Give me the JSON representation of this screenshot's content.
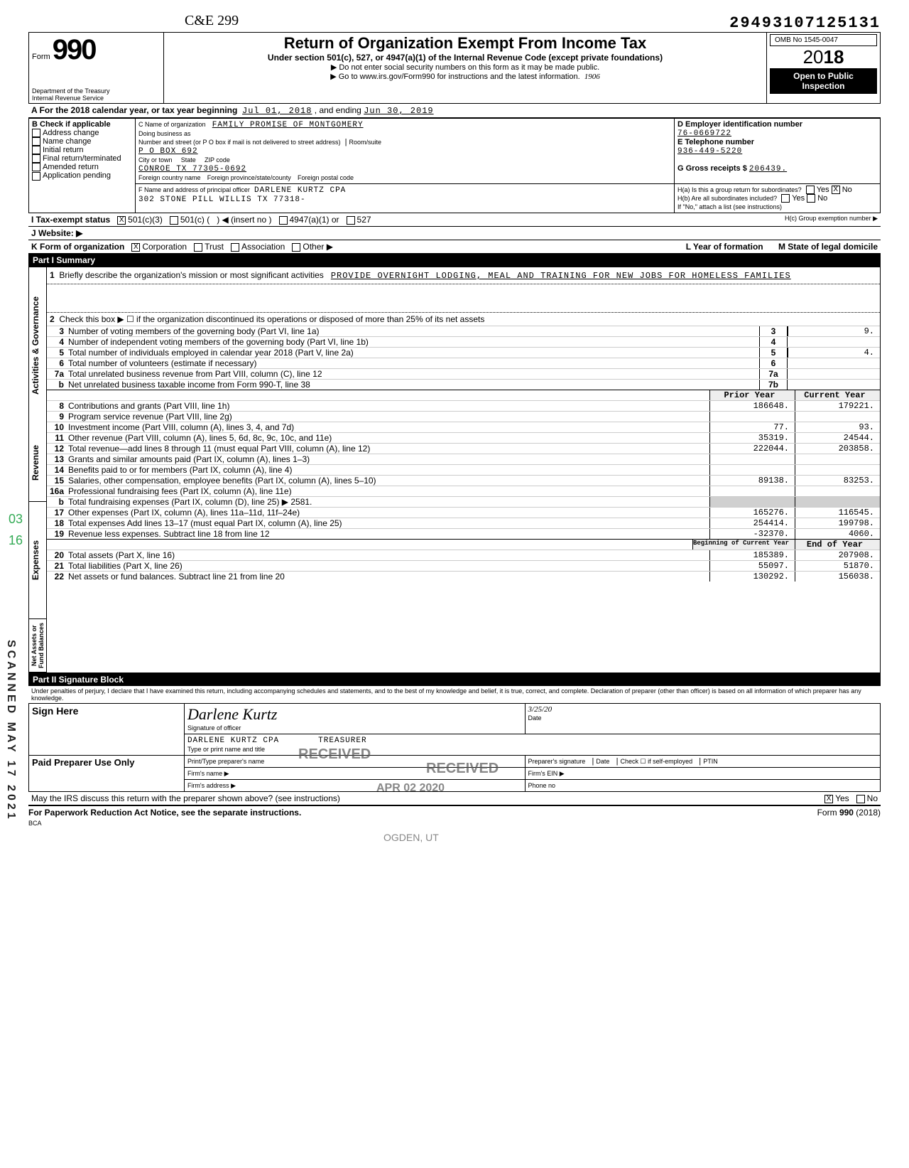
{
  "header": {
    "topright_number": "29493107125131",
    "cursive_top": "C&E 299",
    "form_number": "990",
    "form_prefix": "Form",
    "title": "Return of Organization Exempt From Income Tax",
    "subtitle1": "Under section 501(c), 527, or 4947(a)(1) of the Internal Revenue Code (except private foundations)",
    "subtitle2": "▶ Do not enter social security numbers on this form as it may be made public.",
    "subtitle3": "▶ Go to www.irs.gov/Form990 for instructions and the latest information.",
    "dept": "Department of the Treasury\nInternal Revenue Service",
    "omb": "OMB No 1545-0047",
    "year": "2018",
    "year_large_prefix": "20",
    "year_large_suffix": "18",
    "open": "Open to Public Inspection",
    "handwritten_1906": "1906"
  },
  "lineA": {
    "label": "A  For the 2018 calendar year, or tax year beginning",
    "begin": "Jul 01, 2018",
    "mid": ", and ending",
    "end": "Jun 30, 2019"
  },
  "blockB": {
    "label": "B  Check if applicable",
    "items": [
      "Address change",
      "Name change",
      "Initial return",
      "Final return/terminated",
      "Amended return",
      "Application pending"
    ]
  },
  "blockC": {
    "label": "C Name of organization",
    "org": "FAMILY PROMISE OF MONTGOMERY",
    "dba_label": "Doing business as",
    "addr_label": "Number and street (or P O box if mail is not delivered to street address)",
    "room_label": "Room/suite",
    "addr": "P O BOX 692",
    "city_label": "City or town",
    "state_label": "State",
    "zip_label": "ZIP code",
    "city": "CONROE TX 77305-0692",
    "foreign_country": "Foreign country name",
    "foreign_prov": "Foreign province/state/county",
    "foreign_postal": "Foreign postal code"
  },
  "blockD": {
    "label": "D  Employer identification number",
    "value": "76-0669722"
  },
  "blockE": {
    "label": "E  Telephone number",
    "value": "936-449-5220"
  },
  "blockG": {
    "label": "G  Gross receipts $",
    "value": "206439."
  },
  "blockF": {
    "label": "F Name and address of principal officer",
    "name": "DARLENE KURTZ CPA",
    "addr": "302 STONE PILL WILLIS       TX 77318-"
  },
  "blockH": {
    "ha": "H(a) Is this a group return for subordinates?",
    "ha_yes": "Yes",
    "ha_no": "No",
    "ha_checked": "no",
    "hb": "H(b) Are all subordinates included?",
    "hb_yes": "Yes",
    "hb_no": "No",
    "hb_note": "If \"No,\" attach a list (see instructions)",
    "hc": "H(c) Group exemption number ▶"
  },
  "lineI": {
    "label": "I   Tax-exempt status",
    "opt1": "501(c)(3)",
    "opt1_checked": true,
    "opt2": "501(c)",
    "insert": "(insert no )",
    "opt3": "4947(a)(1) or",
    "opt4": "527"
  },
  "lineJ": {
    "label": "J  Website: ▶"
  },
  "lineK": {
    "label": "K Form of organization",
    "corp": "Corporation",
    "corp_checked": true,
    "trust": "Trust",
    "assoc": "Association",
    "other": "Other ▶"
  },
  "lineL": {
    "label": "L Year of formation"
  },
  "lineM": {
    "label": "M State of legal domicile"
  },
  "part1": {
    "header": "Part I    Summary",
    "side_ag": "Activities & Governance",
    "side_rev": "Revenue",
    "side_exp": "Expenses",
    "side_net": "Net Assets or Fund Balances",
    "line1_label": "Briefly describe the organization's mission or most significant activities",
    "line1_text": "PROVIDE OVERNIGHT LODGING, MEAL AND TRAINING FOR NEW JOBS FOR HOMELESS FAMILIES",
    "line2": "Check this box ▶ ☐ if the organization discontinued its operations or disposed of more than 25% of its net assets",
    "rows_ag": [
      {
        "n": "3",
        "d": "Number of voting members of the governing body (Part VI, line 1a)",
        "box": "3",
        "v": "9."
      },
      {
        "n": "4",
        "d": "Number of independent voting members of the governing body (Part VI, line 1b)",
        "box": "4",
        "v": ""
      },
      {
        "n": "5",
        "d": "Total number of individuals employed in calendar year 2018 (Part V, line 2a)",
        "box": "5",
        "v": "4."
      },
      {
        "n": "6",
        "d": "Total number of volunteers (estimate if necessary)",
        "box": "6",
        "v": ""
      },
      {
        "n": "7a",
        "d": "Total unrelated business revenue from Part VIII, column (C), line 12",
        "box": "7a",
        "v": ""
      },
      {
        "n": "b",
        "d": "Net unrelated business taxable income from Form 990-T, line 38",
        "box": "7b",
        "v": ""
      }
    ],
    "col_headers": {
      "prior": "Prior Year",
      "current": "Current Year"
    },
    "rows_rev": [
      {
        "n": "8",
        "d": "Contributions and grants (Part VIII, line 1h)",
        "p": "186648.",
        "c": "179221."
      },
      {
        "n": "9",
        "d": "Program service revenue (Part VIII, line 2g)",
        "p": "",
        "c": ""
      },
      {
        "n": "10",
        "d": "Investment income (Part VIII, column (A), lines 3, 4, and 7d)",
        "p": "77.",
        "c": "93."
      },
      {
        "n": "11",
        "d": "Other revenue (Part VIII, column (A), lines 5, 6d, 8c, 9c, 10c, and 11e)",
        "p": "35319.",
        "c": "24544."
      },
      {
        "n": "12",
        "d": "Total revenue—add lines 8 through 11 (must equal Part VIII, column (A), line 12)",
        "p": "222044.",
        "c": "203858."
      }
    ],
    "rows_exp": [
      {
        "n": "13",
        "d": "Grants and similar amounts paid (Part IX, column (A), lines 1–3)",
        "p": "",
        "c": ""
      },
      {
        "n": "14",
        "d": "Benefits paid to or for members (Part IX, column (A), line 4)",
        "p": "",
        "c": ""
      },
      {
        "n": "15",
        "d": "Salaries, other compensation, employee benefits (Part IX, column (A), lines 5–10)",
        "p": "89138.",
        "c": "83253."
      },
      {
        "n": "16a",
        "d": "Professional fundraising fees (Part IX, column (A), line 11e)",
        "p": "",
        "c": ""
      },
      {
        "n": "b",
        "d": "Total fundraising expenses (Part IX, column (D), line 25) ▶    2581.",
        "p": "",
        "c": "",
        "shade": true
      },
      {
        "n": "17",
        "d": "Other expenses (Part IX, column (A), lines 11a–11d, 11f–24e)",
        "p": "165276.",
        "c": "116545."
      },
      {
        "n": "18",
        "d": "Total expenses  Add lines 13–17 (must equal Part IX, column (A), line 25)",
        "p": "254414.",
        "c": "199798."
      },
      {
        "n": "19",
        "d": "Revenue less expenses. Subtract line 18 from line 12",
        "p": "-32370.",
        "c": "4060."
      }
    ],
    "col_headers2": {
      "begin": "Beginning of Current Year",
      "end": "End of Year"
    },
    "rows_net": [
      {
        "n": "20",
        "d": "Total assets (Part X, line 16)",
        "p": "185389.",
        "c": "207908."
      },
      {
        "n": "21",
        "d": "Total liabilities (Part X, line 26)",
        "p": "55097.",
        "c": "51870."
      },
      {
        "n": "22",
        "d": "Net assets or fund balances. Subtract line 21 from line 20",
        "p": "130292.",
        "c": "156038."
      }
    ]
  },
  "part2": {
    "header": "Part II    Signature Block",
    "penalties": "Under penalties of perjury, I declare that I have examined this return, including accompanying schedules and statements, and to the best of my knowledge and belief, it is true, correct, and complete. Declaration of preparer (other than officer) is based on all information of which preparer has any knowledge.",
    "sign_here": "Sign Here",
    "sig_officer_label": "Signature of officer",
    "date_label": "Date",
    "date_value": "3/25/20",
    "officer_name": "DARLENE KURTZ CPA",
    "officer_title": "TREASURER",
    "type_label": "Type or print name and title",
    "paid": "Paid Preparer Use Only",
    "prep_name_label": "Print/Type preparer's name",
    "prep_sig_label": "Preparer's signature",
    "check_label": "Check ☐ if self-employed",
    "ptin_label": "PTIN",
    "firm_name_label": "Firm's name ▶",
    "firm_ein_label": "Firm's EIN ▶",
    "firm_addr_label": "Firm's address ▶",
    "phone_label": "Phone no",
    "irs_q": "May the IRS discuss this return with the preparer shown above? (see instructions)",
    "irs_yes": "Yes",
    "irs_no": "No",
    "irs_checked": "yes"
  },
  "footer": {
    "left": "For Paperwork Reduction Act Notice, see the separate instructions.",
    "bca": "BCA",
    "right": "Form 990 (2018)"
  },
  "stamps": {
    "received1": "RECEIVED",
    "received_date": "APR 02 2020",
    "ogden": "OGDEN, UT",
    "side_scan": "SCANNED MAY 17 2021"
  },
  "margins": {
    "left_nums": [
      "03",
      "16"
    ]
  }
}
